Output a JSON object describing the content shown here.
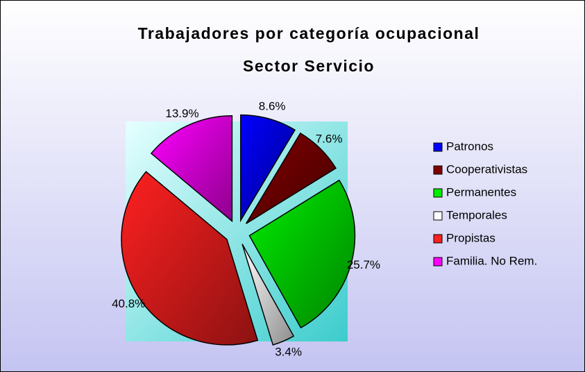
{
  "chart_data": {
    "type": "pie",
    "title": "Trabajadores por categoría ocupacional",
    "subtitle": "Sector Servicio",
    "categories": [
      "Patronos",
      "Cooperativistas",
      "Permanentes",
      "Temporales",
      "Propistas",
      "Familia. No Rem."
    ],
    "values": [
      8.6,
      7.6,
      25.7,
      3.4,
      40.8,
      13.9
    ],
    "value_labels": [
      "8.6%",
      "7.6%",
      "25.7%",
      "3.4%",
      "40.8%",
      "13.9%"
    ],
    "colors": [
      "#0000ff",
      "#800000",
      "#00ee00",
      "#ffffff",
      "#ff2020",
      "#ff00ff"
    ],
    "legend": "right"
  }
}
